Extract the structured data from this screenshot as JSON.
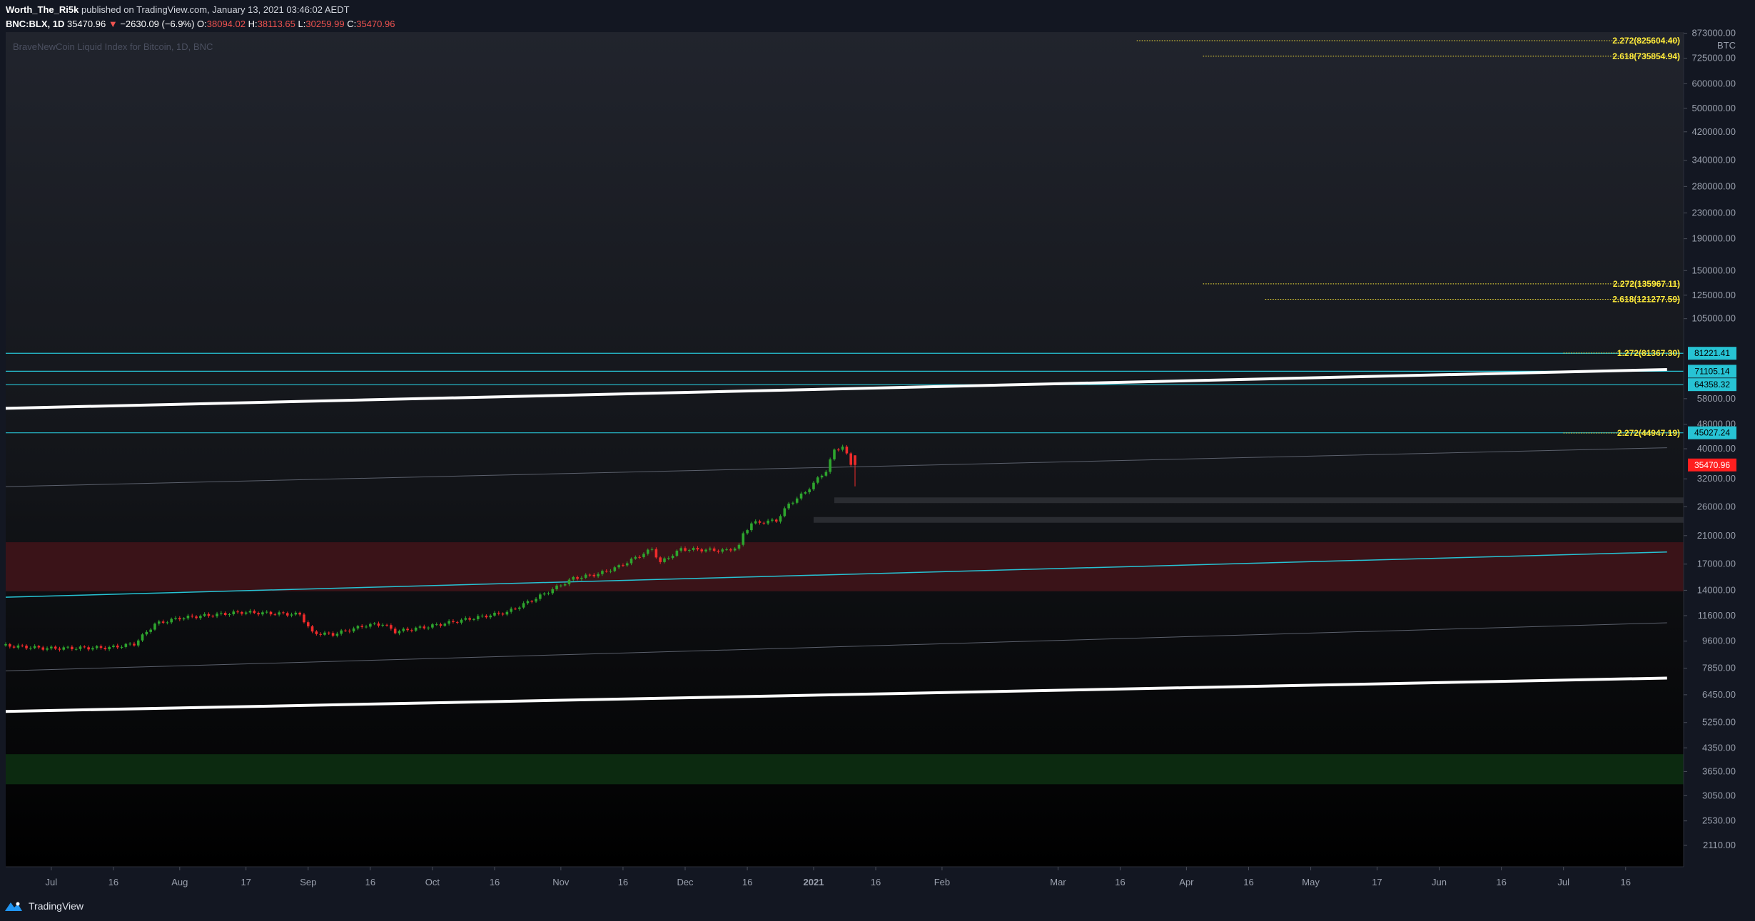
{
  "header": {
    "author": "Worth_The_Ri5k",
    "published_text": "published on TradingView.com, January 13, 2021 03:46:02 AEDT",
    "symbol_text": "BNC:BLX, 1D",
    "last": "35470.96",
    "change_arrow": "▼",
    "change": "−2630.09 (−6.9%)",
    "o_label": "O:",
    "o_value": "38094.02",
    "h_label": "H:",
    "h_value": "38113.65",
    "l_label": "L:",
    "l_value": "30259.99",
    "c_label": "C:",
    "c_value": "35470.96"
  },
  "chart_title": "BraveNewCoin Liquid Index for Bitcoin, 1D, BNC",
  "footer": {
    "brand": "TradingView"
  },
  "colors": {
    "background": "#131722",
    "up": "#26a69a",
    "up_candle": "#2ea52e",
    "down": "#ef2b2b",
    "cyan": "#27c3d4",
    "fib": "#ffeb3b",
    "last_price_tag": "#ff1f1f",
    "red_zone": "#3a1318",
    "green_zone": "#0c2a10"
  },
  "chart_data": {
    "type": "candlestick",
    "scale": "log",
    "ylim": [
      1800,
      880000
    ],
    "xrange": [
      "2020-06-20",
      "2021-07-30"
    ],
    "currency": "BTC",
    "y_ticks": [
      2110,
      2530,
      3050,
      3650,
      4350,
      5250,
      6450,
      7850,
      9600,
      11600,
      14000,
      17000,
      21000,
      26000,
      32000,
      40000,
      48000,
      58000,
      105000,
      125000,
      150000,
      190000,
      230000,
      280000,
      340000,
      420000,
      500000,
      600000,
      725000,
      873000
    ],
    "y_tick_labels": [
      "2110.00",
      "2530.00",
      "3050.00",
      "3650.00",
      "4350.00",
      "5250.00",
      "6450.00",
      "7850.00",
      "9600.00",
      "11600.00",
      "14000.00",
      "17000.00",
      "21000.00",
      "26000.00",
      "32000.00",
      "40000.00",
      "48000.00",
      "58000.00",
      "105000.00",
      "125000.00",
      "150000.00",
      "190000.00",
      "230000.00",
      "280000.00",
      "340000.00",
      "420000.00",
      "500000.00",
      "600000.00",
      "725000.00",
      "873000.00"
    ],
    "x_ticks": [
      {
        "label": "Jul",
        "date": "2020-07-01",
        "bold": false
      },
      {
        "label": "16",
        "date": "2020-07-16",
        "bold": false
      },
      {
        "label": "Aug",
        "date": "2020-08-01",
        "bold": false
      },
      {
        "label": "17",
        "date": "2020-08-17",
        "bold": false
      },
      {
        "label": "Sep",
        "date": "2020-09-01",
        "bold": false
      },
      {
        "label": "16",
        "date": "2020-09-16",
        "bold": false
      },
      {
        "label": "Oct",
        "date": "2020-10-01",
        "bold": false
      },
      {
        "label": "16",
        "date": "2020-10-16",
        "bold": false
      },
      {
        "label": "Nov",
        "date": "2020-11-01",
        "bold": false
      },
      {
        "label": "16",
        "date": "2020-11-16",
        "bold": false
      },
      {
        "label": "Dec",
        "date": "2020-12-01",
        "bold": false
      },
      {
        "label": "16",
        "date": "2020-12-16",
        "bold": false
      },
      {
        "label": "2021",
        "date": "2021-01-01",
        "bold": true
      },
      {
        "label": "16",
        "date": "2021-01-16",
        "bold": false
      },
      {
        "label": "Feb",
        "date": "2021-02-01",
        "bold": false
      },
      {
        "label": "Mar",
        "date": "2021-03-01",
        "bold": false
      },
      {
        "label": "16",
        "date": "2021-03-16",
        "bold": false
      },
      {
        "label": "Apr",
        "date": "2021-04-01",
        "bold": false
      },
      {
        "label": "16",
        "date": "2021-04-16",
        "bold": false
      },
      {
        "label": "May",
        "date": "2021-05-01",
        "bold": false
      },
      {
        "label": "17",
        "date": "2021-05-17",
        "bold": false
      },
      {
        "label": "Jun",
        "date": "2021-06-01",
        "bold": false
      },
      {
        "label": "16",
        "date": "2021-06-16",
        "bold": false
      },
      {
        "label": "Jul",
        "date": "2021-07-01",
        "bold": false
      },
      {
        "label": "16",
        "date": "2021-07-16",
        "bold": false
      }
    ],
    "anchors": [
      [
        "2020-06-20",
        9300
      ],
      [
        "2020-07-01",
        9100
      ],
      [
        "2020-07-16",
        9150
      ],
      [
        "2020-07-22",
        9400
      ],
      [
        "2020-07-27",
        10900
      ],
      [
        "2020-08-02",
        11400
      ],
      [
        "2020-08-17",
        11900
      ],
      [
        "2020-08-31",
        11700
      ],
      [
        "2020-09-03",
        10200
      ],
      [
        "2020-09-08",
        10100
      ],
      [
        "2020-09-16",
        10800
      ],
      [
        "2020-09-20",
        10900
      ],
      [
        "2020-09-23",
        10300
      ],
      [
        "2020-10-01",
        10700
      ],
      [
        "2020-10-12",
        11400
      ],
      [
        "2020-10-20",
        11900
      ],
      [
        "2020-10-27",
        13200
      ],
      [
        "2020-11-05",
        15300
      ],
      [
        "2020-11-11",
        15800
      ],
      [
        "2020-11-16",
        16700
      ],
      [
        "2020-11-24",
        19000
      ],
      [
        "2020-11-26",
        17200
      ],
      [
        "2020-12-01",
        19000
      ],
      [
        "2020-12-12",
        18800
      ],
      [
        "2020-12-15",
        19400
      ],
      [
        "2020-12-16",
        21300
      ],
      [
        "2020-12-18",
        23000
      ],
      [
        "2020-12-24",
        23500
      ],
      [
        "2020-12-27",
        26500
      ],
      [
        "2020-12-31",
        29000
      ],
      [
        "2021-01-03",
        32000
      ],
      [
        "2021-01-05",
        34000
      ],
      [
        "2021-01-07",
        39500
      ],
      [
        "2021-01-09",
        40800
      ],
      [
        "2021-01-10",
        38200
      ],
      [
        "2021-01-11",
        35470.96
      ]
    ],
    "last_candle": {
      "open": 38094.02,
      "high": 38113.65,
      "low": 30259.99,
      "close": 35470.96
    },
    "price_tags": [
      {
        "value": 81221.41,
        "label": "81221.41",
        "color": "#27c3d4"
      },
      {
        "value": 71105.14,
        "label": "71105.14",
        "color": "#27c3d4"
      },
      {
        "value": 64358.32,
        "label": "64358.32",
        "color": "#27c3d4"
      },
      {
        "value": 45027.24,
        "label": "45027.24",
        "color": "#27c3d4"
      },
      {
        "value": 35470.96,
        "label": "35470.96",
        "color": "#ff1f1f"
      }
    ],
    "horizontal_lines": [
      81221.41,
      71105.14,
      64358.32,
      45027.24
    ],
    "fib_levels": [
      {
        "label": "2.272(825604.40)",
        "value": 825604.4,
        "from": "2021-03-20"
      },
      {
        "label": "2.618(735854.94)",
        "value": 735854.94,
        "from": "2021-04-05"
      },
      {
        "label": "2.272(135967.11)",
        "value": 135967.11,
        "from": "2021-04-05"
      },
      {
        "label": "2.618(121277.59)",
        "value": 121277.59,
        "from": "2021-04-20"
      },
      {
        "label": "1.272(81367.30)",
        "value": 81367.3,
        "from": "2021-07-01"
      },
      {
        "label": "2.272(44947.19)",
        "value": 44947.19,
        "from": "2021-07-01"
      }
    ],
    "zones": [
      {
        "name": "red-zone",
        "top": 20000,
        "bottom": 13900,
        "color": "#3a1318"
      },
      {
        "name": "green-zone",
        "top": 4150,
        "bottom": 3320,
        "color": "#0c2a10"
      }
    ],
    "gray_bars": [
      {
        "value": 27300,
        "from": "2021-01-06"
      },
      {
        "value": 23600,
        "from": "2021-01-01"
      }
    ],
    "trendlines": [
      {
        "name": "upper-white-trendline",
        "from": [
          "2020-06-20",
          54000
        ],
        "to": [
          "2021-07-26",
          72000
        ],
        "color": "#ffffff",
        "width": 4
      },
      {
        "name": "lower-white-trendline",
        "from": [
          "2020-06-20",
          5700
        ],
        "to": [
          "2021-07-26",
          7300
        ],
        "color": "#ffffff",
        "width": 4
      },
      {
        "name": "cyan-channel-line",
        "from": [
          "2020-06-20",
          13300
        ],
        "to": [
          "2021-07-26",
          18600
        ],
        "color": "#27c3d4",
        "width": 1.5
      },
      {
        "name": "gray-upper-channel",
        "from": [
          "2020-06-20",
          30200
        ],
        "to": [
          "2021-07-26",
          40300
        ],
        "color": "#5b606c",
        "width": 1
      },
      {
        "name": "gray-lower-channel",
        "from": [
          "2020-06-20",
          7700
        ],
        "to": [
          "2021-07-26",
          11000
        ],
        "color": "#5b606c",
        "width": 1
      }
    ]
  }
}
